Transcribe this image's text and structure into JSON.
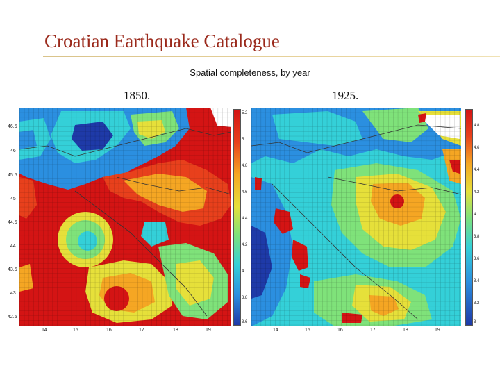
{
  "slide": {
    "title": "Croatian Earthquake Catalogue",
    "subtitle": "Spatial completeness, by year",
    "accent_color": "#9b2a1c"
  },
  "maps": [
    {
      "year": "1850.",
      "y_ticks": [
        "46.5",
        "46",
        "45.5",
        "45",
        "44.5",
        "44",
        "43.5",
        "43",
        "42.5"
      ],
      "x_ticks": [
        "14",
        "15",
        "16",
        "17",
        "18",
        "19"
      ],
      "colorbar_ticks": [
        "5.2",
        "5",
        "4.8",
        "4.6",
        "4.4",
        "4.2",
        "4",
        "3.8",
        "3.6"
      ]
    },
    {
      "year": "1925.",
      "y_ticks": [],
      "x_ticks": [
        "14",
        "15",
        "16",
        "17",
        "18",
        "19"
      ],
      "colorbar_ticks": [
        "4.8",
        "4.6",
        "4.4",
        "4.2",
        "4",
        "3.8",
        "3.6",
        "3.4",
        "3.2",
        "3"
      ]
    }
  ],
  "colormap": [
    "#1e3aa8",
    "#2b8fe0",
    "#34d0d8",
    "#7fe27a",
    "#e6e03a",
    "#f5a623",
    "#e8401c",
    "#d41414"
  ]
}
